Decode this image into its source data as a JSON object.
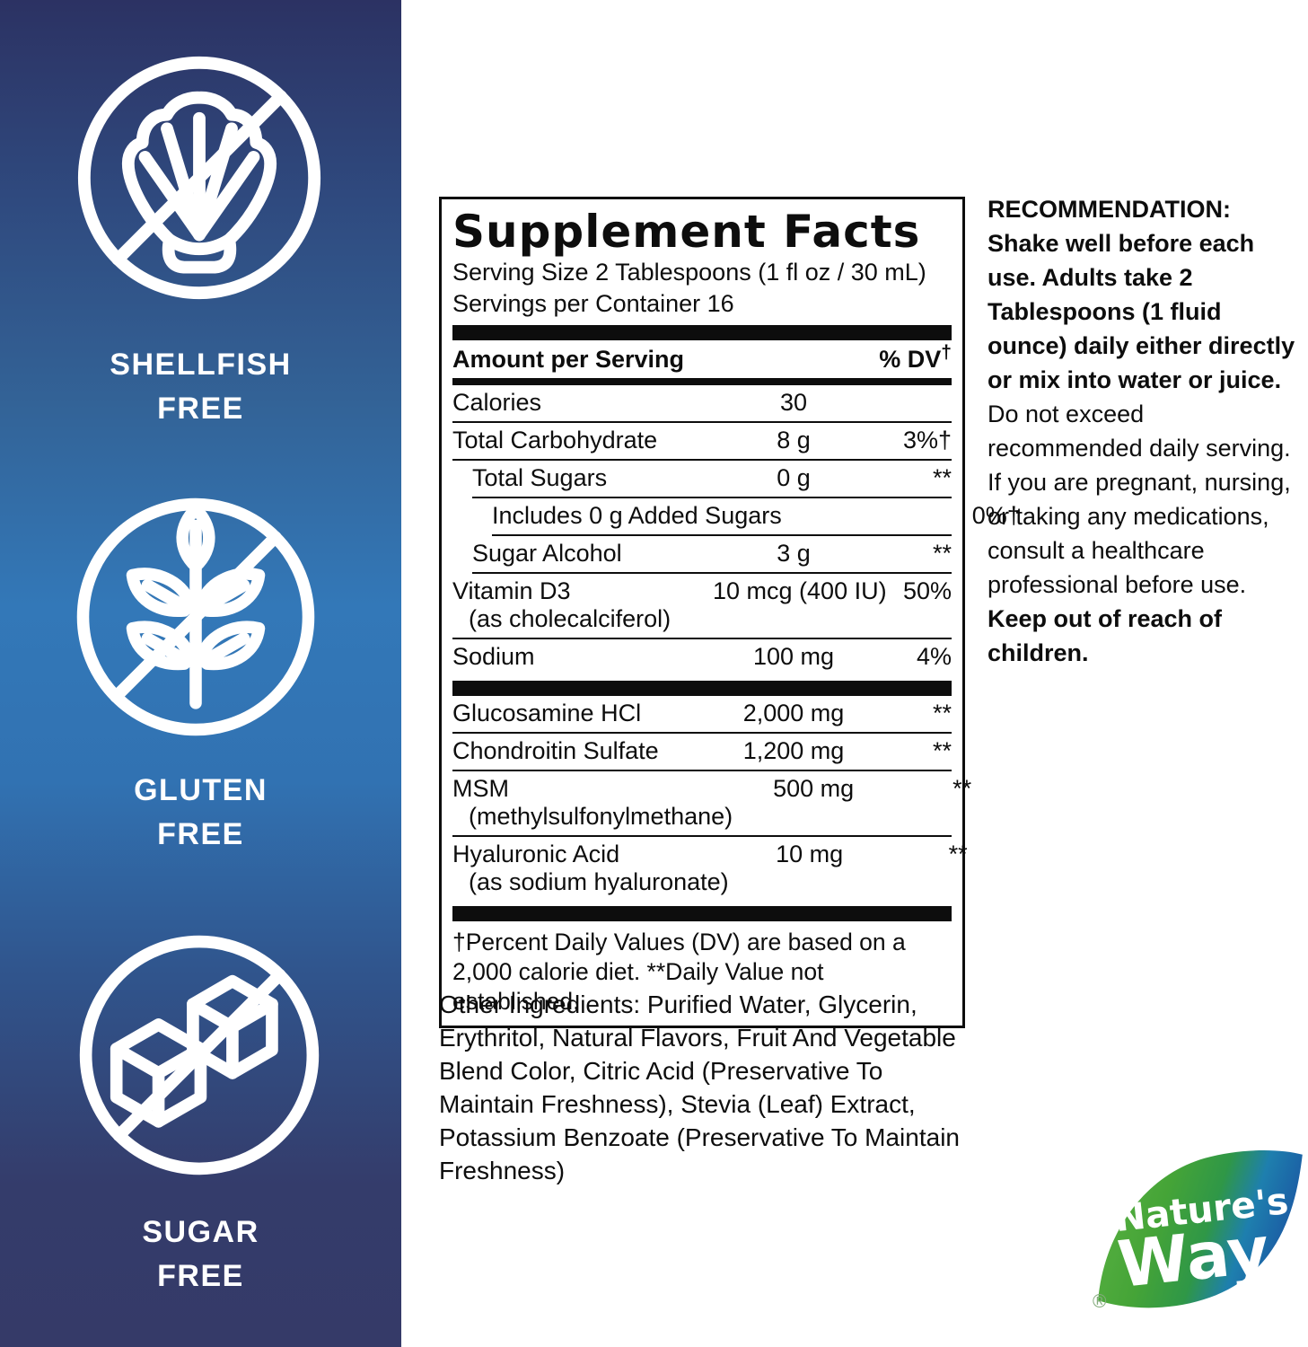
{
  "left_panel": {
    "badges": [
      {
        "icon": "no-shellfish-icon",
        "line1": "SHELLFISH",
        "line2": "FREE"
      },
      {
        "icon": "no-gluten-icon",
        "line1": "GLUTEN",
        "line2": "FREE"
      },
      {
        "icon": "no-sugar-icon",
        "line1": "SUGAR",
        "line2": "FREE"
      }
    ],
    "gradient_colors": {
      "top": "#2c3263",
      "middle": "#3378b8",
      "bottom": "#353a68"
    }
  },
  "supplement_facts": {
    "title": "Supplement Facts",
    "serving_size": "Serving Size 2 Tablespoons (1 fl oz / 30 mL)",
    "servings_per_container": "Servings per Container 16",
    "header": {
      "amount_label": "Amount per Serving",
      "dv_label": "% DV",
      "dagger": "†"
    },
    "main_rows": [
      {
        "name": "Calories",
        "amount": "30",
        "dv": "",
        "indent": 0
      },
      {
        "name": "Total Carbohydrate",
        "amount": "8 g",
        "dv": "3%†",
        "indent": 0
      },
      {
        "name": "Total Sugars",
        "amount": "0 g",
        "dv": "**",
        "indent": 1
      },
      {
        "name": "Includes 0 g Added Sugars",
        "amount": "",
        "dv": "0%†",
        "indent": 2
      },
      {
        "name": "Sugar Alcohol",
        "amount": "3 g",
        "dv": "**",
        "indent": 1
      },
      {
        "name": "Vitamin D3",
        "sub": "(as cholecalciferol)",
        "amount": "10 mcg (400 IU)",
        "dv": "50%",
        "indent": 0
      },
      {
        "name": "Sodium",
        "amount": "100 mg",
        "dv": "4%",
        "indent": 0
      }
    ],
    "extra_rows": [
      {
        "name": "Glucosamine HCl",
        "amount": "2,000 mg",
        "dv": "**",
        "indent": 0
      },
      {
        "name": "Chondroitin Sulfate",
        "amount": "1,200 mg",
        "dv": "**",
        "indent": 0
      },
      {
        "name": "MSM",
        "sub": "(methylsulfonylmethane)",
        "amount": "500 mg",
        "dv": "**",
        "indent": 0
      },
      {
        "name": "Hyaluronic Acid",
        "sub": "(as sodium hyaluronate)",
        "amount": "10 mg",
        "dv": "**",
        "indent": 0
      }
    ],
    "footnote": "†Percent Daily Values (DV) are based on a 2,000 calorie diet. **Daily Value not established."
  },
  "other_ingredients": "Other Ingredients: Purified Water, Glycerin, Erythritol, Natural Flavors, Fruit And Vegetable Blend Color, Citric Acid (Preservative To Maintain Freshness), Stevia (Leaf) Extract, Potassium Benzoate (Preservative To Maintain Freshness)",
  "recommendation": {
    "heading": "RECOMMENDATION:",
    "bold1": "Shake well before each use. Adults take 2 Tablespoons (1 fluid ounce) daily either directly or mix into water or juice.",
    "regular": "Do not exceed recommended daily serving. If you are pregnant, nursing, or taking any medications, consult a healthcare professional before use.",
    "bold2": "Keep out of reach of children."
  },
  "brand": {
    "name_line1": "Nature's",
    "name_line2": "Way",
    "registered": "®",
    "leaf_green": "#45a437",
    "leaf_blue": "#1b5ca4"
  }
}
